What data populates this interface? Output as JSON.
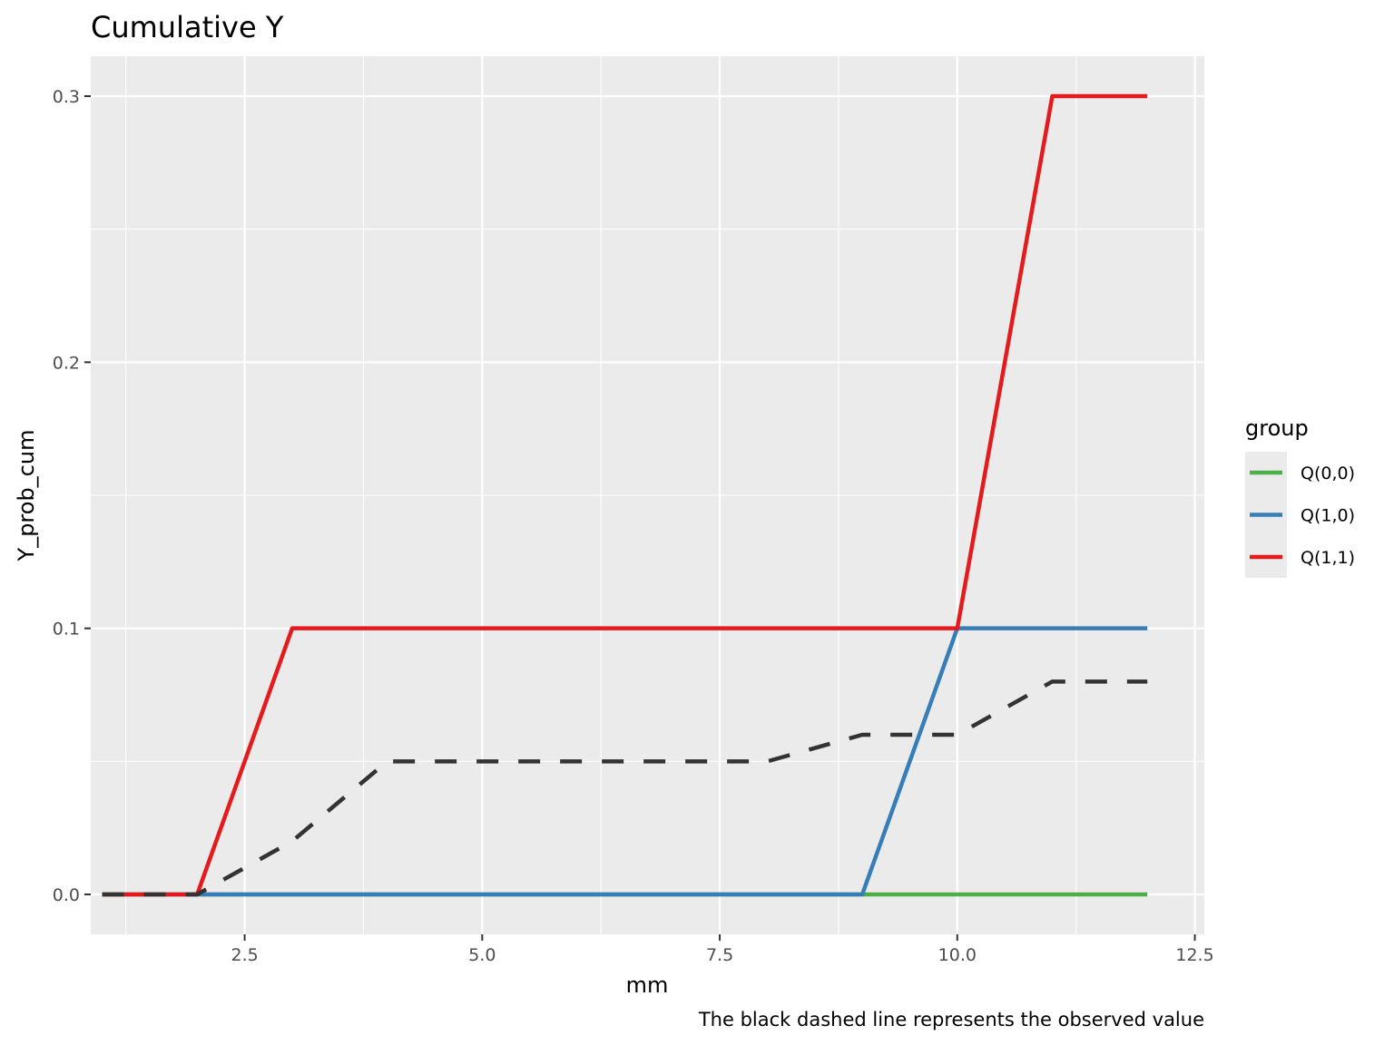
{
  "chart_data": {
    "type": "line",
    "title": "Cumulative Y",
    "xlabel": "mm",
    "ylabel": "Y_prob_cum",
    "caption": "The black dashed line represents the observed value",
    "xlim": [
      0.88,
      12.6
    ],
    "ylim": [
      -0.015,
      0.315
    ],
    "x_ticks": [
      2.5,
      5.0,
      7.5,
      10.0,
      12.5
    ],
    "x_tick_labels": [
      "2.5",
      "5.0",
      "7.5",
      "10.0",
      "12.5"
    ],
    "y_ticks": [
      0.0,
      0.1,
      0.2,
      0.3
    ],
    "y_tick_labels": [
      "0.0",
      "0.1",
      "0.2",
      "0.3"
    ],
    "legend": {
      "title": "group",
      "position": "right",
      "entries": [
        "Q(0,0)",
        "Q(1,0)",
        "Q(1,1)"
      ]
    },
    "x": [
      1,
      2,
      3,
      4,
      5,
      6,
      7,
      8,
      9,
      10,
      11,
      12
    ],
    "series": [
      {
        "name": "Q(0,0)",
        "color": "#4daf4a",
        "values": [
          0,
          0,
          0,
          0,
          0,
          0,
          0,
          0,
          0,
          0,
          0,
          0
        ]
      },
      {
        "name": "Q(1,0)",
        "color": "#377eb8",
        "values": [
          0,
          0,
          0,
          0,
          0,
          0,
          0,
          0,
          0,
          0.1,
          0.1,
          0.1
        ]
      },
      {
        "name": "Q(1,1)",
        "color": "#e41a1c",
        "values": [
          0,
          0,
          0.1,
          0.1,
          0.1,
          0.1,
          0.1,
          0.1,
          0.1,
          0.1,
          0.3,
          0.3
        ]
      },
      {
        "color": "#333333",
        "dashed": true,
        "values": [
          0,
          0,
          0.02,
          0.05,
          0.05,
          0.05,
          0.05,
          0.05,
          0.06,
          0.06,
          0.08,
          0.08
        ]
      }
    ],
    "grid": true,
    "panel_background": "#ebebeb"
  }
}
